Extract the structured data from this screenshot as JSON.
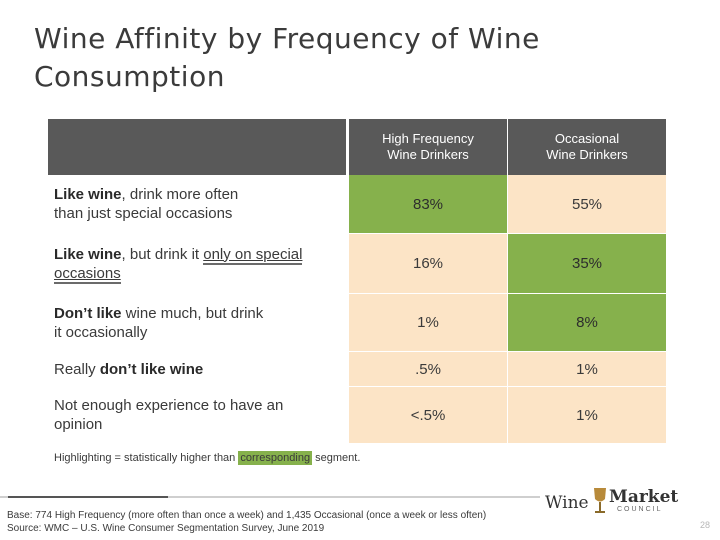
{
  "title": {
    "line1": "Wine Affinity by Frequency of Wine",
    "line2": "Consumption"
  },
  "table": {
    "columns": [
      {
        "line1": "High Frequency",
        "line2": "Wine Drinkers"
      },
      {
        "line1": "Occasional",
        "line2": "Wine Drinkers"
      }
    ],
    "rows": [
      {
        "label_bold": "Like wine",
        "label_rest_1": ", drink more often",
        "label_rest_2": "than just special occasions",
        "values": [
          "83%",
          "55%"
        ],
        "highlight": [
          true,
          false
        ]
      },
      {
        "label_bold": "Like wine",
        "label_rest_1": ", but drink it ",
        "label_underline": "only on special occasions",
        "values": [
          "16%",
          "35%"
        ],
        "highlight": [
          false,
          true
        ]
      },
      {
        "label_bold": "Don’t like",
        "label_rest_1": " wine much, but drink",
        "label_rest_2": "it occasionally",
        "values": [
          "1%",
          "8%"
        ],
        "highlight": [
          false,
          true
        ]
      },
      {
        "label_plain": "Really ",
        "label_bold": "don’t like wine",
        "values": [
          ".5%",
          "1%"
        ],
        "highlight": [
          false,
          false
        ]
      },
      {
        "label_line1": "Not enough experience to have an",
        "label_line2": "opinion",
        "values": [
          "<.5%",
          "1%"
        ],
        "highlight": [
          false,
          false
        ]
      }
    ]
  },
  "note": {
    "before": "Highlighting = statistically higher than ",
    "highlighted": "corresponding",
    "after": " segment."
  },
  "footer": {
    "line1": "Base: 774 High Frequency (more often than once a week) and 1,435 Occasional (once a week or less often)",
    "line2": "Source: WMC – U.S. Wine Consumer Segmentation Survey, June 2019"
  },
  "logo": {
    "word1": "Wine",
    "word2": "Market",
    "word3": "COUNCIL"
  },
  "page_number": "28",
  "colors": {
    "header_bg": "#595959",
    "cell_bg": "#fce4c6",
    "highlight": "#86b14c"
  }
}
